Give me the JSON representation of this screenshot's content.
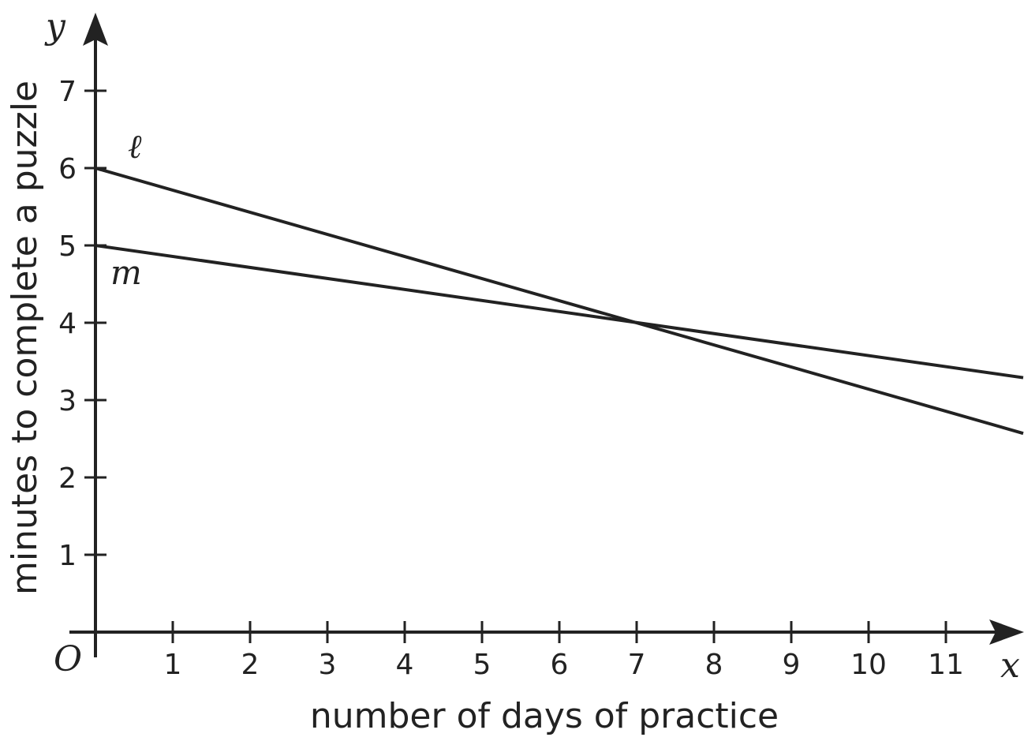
{
  "chart_data": {
    "type": "line",
    "xlabel": "number of days of practice",
    "ylabel": "minutes to complete a puzzle",
    "x_var": "x",
    "y_var": "y",
    "origin_label": "O",
    "xlim": [
      0,
      12
    ],
    "ylim": [
      0,
      8
    ],
    "x_ticks": [
      "1",
      "2",
      "3",
      "4",
      "5",
      "6",
      "7",
      "8",
      "9",
      "10",
      "11"
    ],
    "y_ticks": [
      "1",
      "2",
      "3",
      "4",
      "5",
      "6",
      "7"
    ],
    "grid": false,
    "series": [
      {
        "name": "ℓ",
        "x": [
          0,
          12
        ],
        "y": [
          6,
          2.57
        ]
      },
      {
        "name": "m",
        "x": [
          0,
          12
        ],
        "y": [
          5,
          3.29
        ]
      }
    ]
  }
}
